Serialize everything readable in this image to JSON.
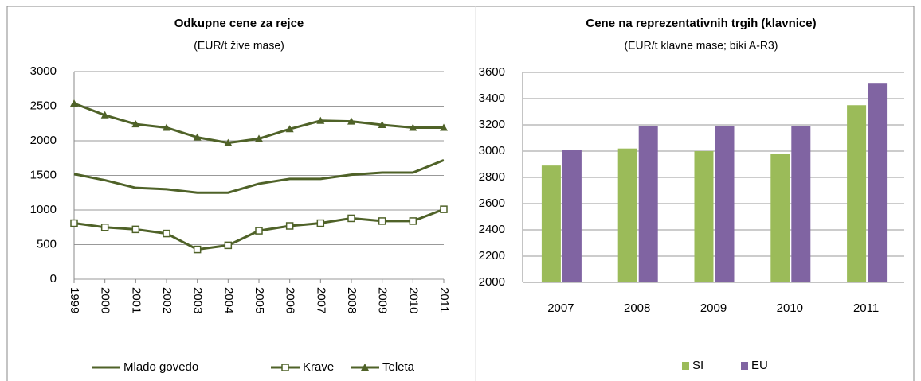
{
  "chart_data": [
    {
      "type": "line",
      "title": "Odkupne cene za rejce",
      "subtitle": "(EUR/t žive mase)",
      "categories": [
        "1999",
        "2000",
        "2001",
        "2002",
        "2003",
        "2004",
        "2005",
        "2006",
        "2007",
        "2008",
        "2009",
        "2010",
        "2011"
      ],
      "series": [
        {
          "name": "Mlado govedo",
          "color": "#4f6228",
          "marker": "none",
          "values": [
            1520,
            1430,
            1320,
            1300,
            1250,
            1250,
            1380,
            1450,
            1450,
            1510,
            1540,
            1540,
            1720
          ]
        },
        {
          "name": "Krave",
          "color": "#4f6228",
          "marker": "square",
          "values": [
            810,
            750,
            720,
            660,
            430,
            490,
            700,
            770,
            810,
            880,
            840,
            840,
            1010
          ]
        },
        {
          "name": "Teleta",
          "color": "#4f6228",
          "marker": "triangle",
          "values": [
            2540,
            2370,
            2240,
            2190,
            2050,
            1970,
            2030,
            2170,
            2290,
            2280,
            2230,
            2190,
            2190
          ]
        }
      ],
      "ylim": [
        0,
        3000
      ],
      "yticks": [
        0,
        500,
        1000,
        1500,
        2000,
        2500,
        3000
      ],
      "grid": true
    },
    {
      "type": "bar",
      "title": "Cene na reprezentativnih trgih (klavnice)",
      "subtitle": "(EUR/t klavne mase; biki A-R3)",
      "categories": [
        "2007",
        "2008",
        "2009",
        "2010",
        "2011"
      ],
      "series": [
        {
          "name": "SI",
          "color": "#9bbb59",
          "values": [
            2890,
            3020,
            3000,
            2980,
            3350
          ]
        },
        {
          "name": "EU",
          "color": "#8064a2",
          "values": [
            3010,
            3190,
            3190,
            3190,
            3520
          ]
        }
      ],
      "ylim": [
        2000,
        3600
      ],
      "yticks": [
        2000,
        2200,
        2400,
        2600,
        2800,
        3000,
        3200,
        3400,
        3600
      ],
      "grid": true
    }
  ]
}
